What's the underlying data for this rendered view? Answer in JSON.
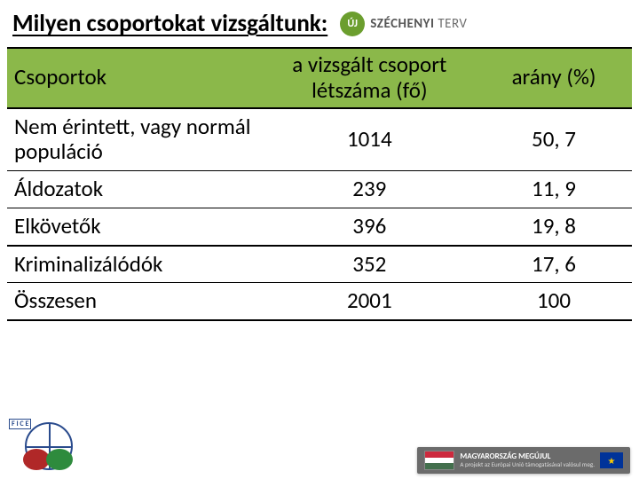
{
  "title": "Milyen csoportokat vizsgáltunk:",
  "brand": {
    "badge": "ÚJ",
    "label_bold": "SZÉCHENYI",
    "label_rest": " TERV"
  },
  "table": {
    "header_bg": "#8bb84a",
    "columns": [
      {
        "label": "Csoportok",
        "align": "left"
      },
      {
        "label": "a vizsgált csoport létszáma (fő)",
        "align": "center"
      },
      {
        "label": "arány (%)",
        "align": "center"
      }
    ],
    "rows": [
      {
        "cells": [
          "Nem érintett, vagy normál populáció",
          "1014",
          "50, 7"
        ],
        "heavy_border": false
      },
      {
        "cells": [
          "Áldozatok",
          "239",
          "11, 9"
        ],
        "heavy_border": false
      },
      {
        "cells": [
          "Elkövetők",
          "396",
          "19, 8"
        ],
        "heavy_border": true
      },
      {
        "cells": [
          "Kriminalizálódók",
          "352",
          "17, 6"
        ],
        "heavy_border": false
      },
      {
        "cells": [
          "Összesen",
          "2001",
          "100"
        ],
        "heavy_border": false
      }
    ]
  },
  "footer": {
    "left_tag": "F I C E",
    "hu_flag": [
      "#cd2a3e",
      "#ffffff",
      "#436f4d"
    ],
    "right_title": "MAGYARORSZÁG MEGÚJUL",
    "right_sub": "A projekt az Európai Unió támogatásával valósul meg.",
    "eu_stars": "★"
  }
}
